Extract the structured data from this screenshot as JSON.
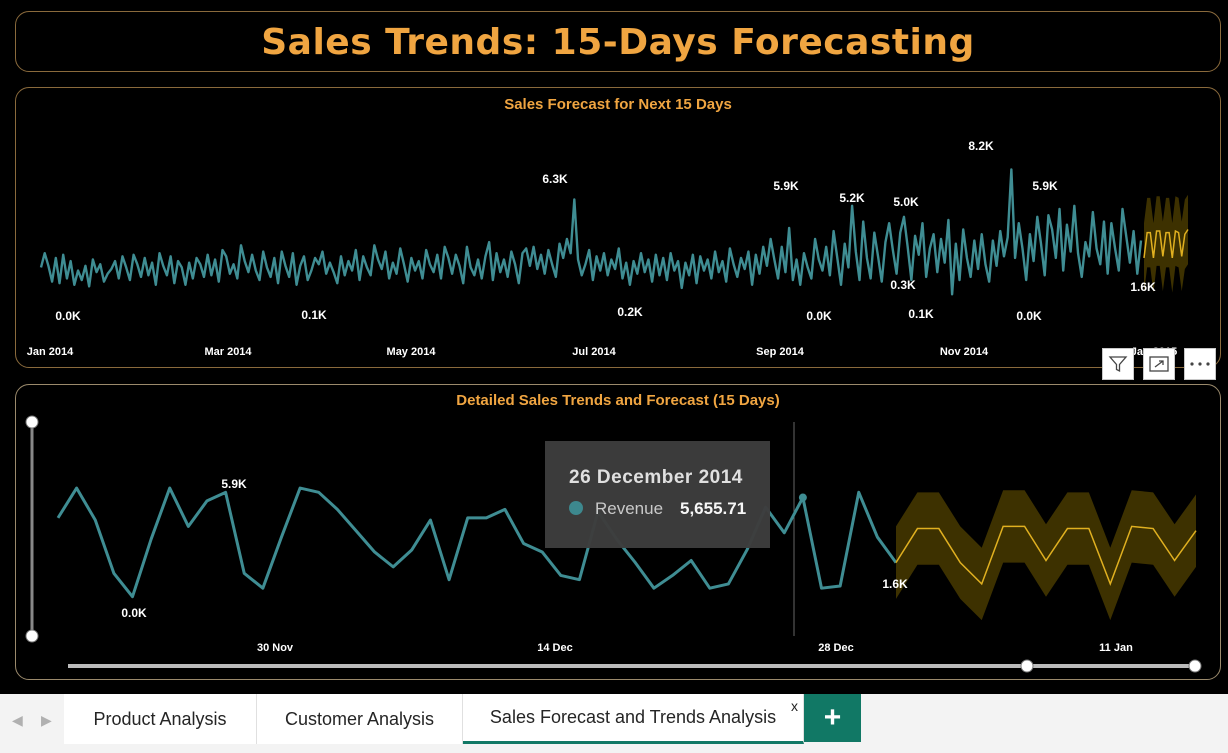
{
  "title": "Sales Trends: 15-Days Forecasting",
  "colors": {
    "actual": "#3f8d93",
    "forecast": "#e0b020",
    "band": "#3d3100",
    "accent": "#f0a541"
  },
  "chart_data": [
    {
      "type": "line",
      "title": "Sales Forecast for Next 15 Days",
      "x_ticks": [
        "Jan 2014",
        "Mar 2014",
        "May 2014",
        "Jul 2014",
        "Sep 2014",
        "Nov 2014",
        "Jan 2015"
      ],
      "annotations": [
        "0.0K",
        "0.1K",
        "6.3K",
        "0.2K",
        "5.9K",
        "0.0K",
        "5.2K",
        "5.0K",
        "0.3K",
        "0.1K",
        "8.2K",
        "0.0K",
        "5.9K",
        "1.6K"
      ],
      "series": [
        {
          "name": "Revenue",
          "values": [
            2000,
            2900,
            2100,
            1100,
            2600,
            1000,
            2800,
            1300,
            2400,
            900,
            1800,
            1200,
            2100,
            800,
            2500,
            1700,
            2200,
            1100,
            1600,
            1900,
            2400,
            1300,
            2700,
            2000,
            1200,
            2800,
            2200,
            1400,
            2600,
            1500,
            2300,
            900,
            2900,
            2100,
            1500,
            2700,
            1000,
            2400,
            2000,
            900,
            2300,
            1300,
            2600,
            2200,
            1400,
            2800,
            1500,
            2500,
            1100,
            3100,
            2700,
            1600,
            2200,
            1300,
            3400,
            2400,
            1700,
            2800,
            1800,
            1200,
            3000,
            2000,
            1400,
            2600,
            1000,
            3000,
            2100,
            1400,
            2900,
            900,
            2100,
            2700,
            1200,
            1800,
            2600,
            2200,
            3000,
            1600,
            2300,
            1700,
            1000,
            2700,
            1500,
            2400,
            1800,
            3100,
            1200,
            2700,
            2000,
            1500,
            3400,
            2500,
            1900,
            3000,
            1300,
            2300,
            1600,
            3200,
            2200,
            1100,
            2600,
            1800,
            2400,
            1300,
            3100,
            2200,
            1700,
            2800,
            1300,
            3300,
            2600,
            1600,
            2800,
            2100,
            1000,
            3300,
            2000,
            1500,
            2500,
            1300,
            2700,
            3600,
            1200,
            2900,
            1700,
            2500,
            1400,
            3000,
            2200,
            1000,
            2900,
            3200,
            2100,
            3300,
            1900,
            2800,
            1600,
            3100,
            2200,
            1400,
            3500,
            2600,
            3800,
            2900,
            6300,
            2500,
            1500,
            2200,
            3100,
            1200,
            2700,
            1800,
            2900,
            1500,
            2500,
            1900,
            3200,
            1300,
            2300,
            900,
            2400,
            1600,
            2900,
            1700,
            2500,
            1100,
            2800,
            1500,
            2600,
            1200,
            2900,
            1800,
            2400,
            700,
            2300,
            1500,
            2800,
            1000,
            2700,
            1800,
            2500,
            1300,
            3000,
            1700,
            2400,
            1100,
            3200,
            2200,
            1400,
            2600,
            1900,
            3000,
            900,
            2800,
            1600,
            3300,
            2100,
            3800,
            2500,
            1300,
            3300,
            1700,
            4500,
            1200,
            2500,
            900,
            2900,
            2000,
            1300,
            3800,
            2500,
            1800,
            3300,
            1500,
            4300,
            2600,
            900,
            3500,
            2000,
            5900,
            3000,
            1200,
            4900,
            2600,
            1300,
            4200,
            2700,
            1100,
            3600,
            4800,
            3100,
            1600,
            4200,
            5200,
            3300,
            1200,
            4000,
            2800,
            4800,
            1400,
            3200,
            4100,
            1700,
            3800,
            2300,
            5000,
            300,
            3500,
            1200,
            4400,
            2600,
            1400,
            3700,
            1900,
            4100,
            2200,
            1100,
            3700,
            2100,
            4300,
            2700,
            3900,
            8200,
            2600,
            4800,
            3200,
            1200,
            4100,
            2400,
            5200,
            3500,
            1500,
            5300,
            4400,
            2600,
            5700,
            1800,
            4700,
            3000,
            5900,
            2900,
            1400,
            3600,
            2700,
            5500,
            3200,
            2200,
            4900,
            1600,
            4800,
            3200,
            1800,
            5700,
            4000,
            2300,
            4300,
            1600,
            3700
          ]
        },
        {
          "name": "Forecast",
          "values": [
            2600,
            4200,
            4200,
            2600,
            4300,
            4300,
            2700,
            4200,
            4200,
            2600,
            4300,
            4200,
            2700,
            4100,
            4400
          ]
        }
      ]
    },
    {
      "type": "line",
      "title": "Detailed Sales Trends and Forecast (15 Days)",
      "x_ticks": [
        "30 Nov",
        "14 Dec",
        "28 Dec",
        "11 Jan"
      ],
      "annotations": [
        "5.9K",
        "0.0K",
        "1.6K"
      ],
      "series": [
        {
          "name": "Revenue",
          "values": [
            4700,
            6100,
            4600,
            2100,
            1000,
            3700,
            6100,
            4300,
            5500,
            5900,
            2100,
            1400,
            3800,
            6100,
            5900,
            5100,
            4100,
            3100,
            2400,
            3200,
            4600,
            1800,
            4700,
            4700,
            5100,
            3500,
            3100,
            2000,
            1800,
            5000,
            3700,
            2600,
            1400,
            2000,
            2700,
            1400,
            1600,
            3200,
            5200,
            4000,
            5655.71,
            1400,
            1500,
            5900,
            3800,
            2600
          ]
        },
        {
          "name": "Forecast",
          "values": [
            2600,
            4200,
            4200,
            2600,
            1600,
            4300,
            4300,
            2700,
            4200,
            4200,
            1600,
            4300,
            4200,
            2700,
            4100
          ]
        }
      ]
    }
  ],
  "tooltip": {
    "date": "26 December 2014",
    "label": "Revenue",
    "value": "5,655.71"
  },
  "tabs": [
    {
      "label": "Product Analysis"
    },
    {
      "label": "Customer Analysis"
    },
    {
      "label": "Sales Forecast and Trends Analysis",
      "close": "x"
    }
  ],
  "add_tab": "+",
  "icons": [
    "filter-icon",
    "focus-mode-icon",
    "more-options-icon",
    "previous-page-icon",
    "next-page-icon"
  ]
}
